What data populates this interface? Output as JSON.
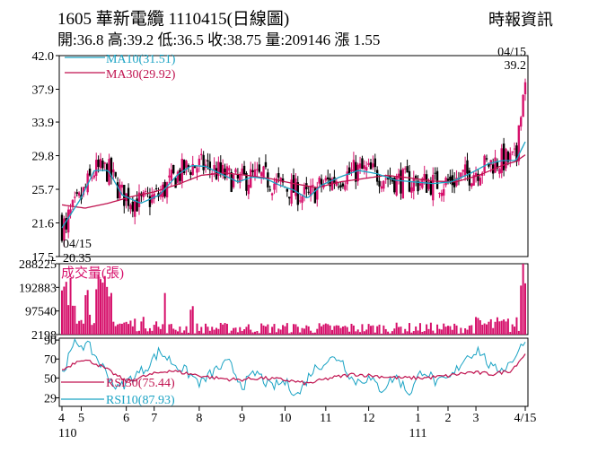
{
  "header": {
    "title": "1605  華新電纜 1110415(日線圖)",
    "source": "時報資訊",
    "ohlc": "開:36.8 高:39.2 低:36.5 收:38.75 量:209146 漲 1.55"
  },
  "colors": {
    "candle": "#d6106b",
    "ma10": "#1aa3c4",
    "ma30": "#c0124f",
    "rsi30": "#c0124f",
    "rsi10": "#1aa3c4",
    "volume": "#d6106b",
    "axis": "#000000"
  },
  "chart_data": [
    {
      "type": "candlestick",
      "title": "1605  華新電纜 1110415(日線圖)",
      "yticks": [
        17.5,
        21.6,
        25.7,
        29.8,
        33.9,
        37.9,
        42.0
      ],
      "ytick_labels": [
        "17.5",
        "21.6",
        "25.7",
        "29.8",
        "33.9",
        "37.9",
        "42.0"
      ],
      "ylim": [
        17.5,
        42.0
      ],
      "legend": [
        "MA10(31.51)",
        "MA30(29.92)"
      ],
      "annotations": [
        {
          "text": "04/15",
          "value": 20.35,
          "kind": "low"
        },
        {
          "text": "20.35",
          "value": 20.35,
          "kind": "low"
        },
        {
          "text": "04/15",
          "value": 39.2,
          "kind": "high"
        },
        {
          "text": "39.2",
          "value": 39.2,
          "kind": "high"
        }
      ],
      "ma_anchors": {
        "ma10": [
          [
            0,
            21.0
          ],
          [
            8,
            24.5
          ],
          [
            14,
            28.0
          ],
          [
            20,
            28.0
          ],
          [
            26,
            25.0
          ],
          [
            34,
            24.0
          ],
          [
            42,
            25.0
          ],
          [
            50,
            27.5
          ],
          [
            56,
            28.6
          ],
          [
            62,
            28.5
          ],
          [
            70,
            27.4
          ],
          [
            76,
            26.6
          ],
          [
            82,
            27.2
          ],
          [
            88,
            27.0
          ],
          [
            94,
            26.2
          ],
          [
            100,
            25.6
          ],
          [
            106,
            24.6
          ],
          [
            112,
            26.2
          ],
          [
            120,
            27.2
          ],
          [
            128,
            28.0
          ],
          [
            136,
            27.6
          ],
          [
            144,
            26.8
          ],
          [
            152,
            26.6
          ],
          [
            160,
            26.4
          ],
          [
            168,
            26.6
          ],
          [
            176,
            27.6
          ],
          [
            184,
            28.8
          ],
          [
            190,
            29.2
          ],
          [
            196,
            29.2
          ],
          [
            200,
            31.5
          ]
        ],
        "ma30": [
          [
            0,
            23.8
          ],
          [
            10,
            23.4
          ],
          [
            20,
            24.0
          ],
          [
            30,
            24.8
          ],
          [
            40,
            25.4
          ],
          [
            50,
            26.3
          ],
          [
            60,
            27.4
          ],
          [
            70,
            27.7
          ],
          [
            80,
            27.4
          ],
          [
            90,
            27.0
          ],
          [
            100,
            26.4
          ],
          [
            110,
            25.9
          ],
          [
            120,
            26.6
          ],
          [
            130,
            27.0
          ],
          [
            140,
            27.4
          ],
          [
            150,
            27.1
          ],
          [
            160,
            26.7
          ],
          [
            170,
            26.6
          ],
          [
            180,
            27.4
          ],
          [
            190,
            28.6
          ],
          [
            196,
            29.1
          ],
          [
            200,
            29.9
          ]
        ]
      }
    },
    {
      "type": "bar",
      "title": "成交量(張)",
      "yticks": [
        2198,
        97540,
        192883,
        288225
      ],
      "ytick_labels": [
        "2198",
        "97540",
        "192883",
        "288225"
      ],
      "ylim": [
        2198,
        288225
      ],
      "last_value": 209146
    },
    {
      "type": "line",
      "yticks": [
        29,
        50,
        70,
        90
      ],
      "ytick_labels": [
        "29",
        "50",
        "70",
        "90"
      ],
      "ylim": [
        20,
        92
      ],
      "legend": [
        "RSI30(75.44)",
        "RSI10(87.93)"
      ],
      "rsi_anchors": {
        "rsi30": [
          [
            0,
            58
          ],
          [
            8,
            70
          ],
          [
            14,
            66
          ],
          [
            20,
            58
          ],
          [
            28,
            46
          ],
          [
            36,
            52
          ],
          [
            46,
            58
          ],
          [
            56,
            54
          ],
          [
            66,
            50
          ],
          [
            76,
            48
          ],
          [
            86,
            50
          ],
          [
            96,
            48
          ],
          [
            106,
            44
          ],
          [
            116,
            50
          ],
          [
            126,
            54
          ],
          [
            136,
            52
          ],
          [
            146,
            50
          ],
          [
            156,
            50
          ],
          [
            166,
            52
          ],
          [
            176,
            56
          ],
          [
            186,
            54
          ],
          [
            194,
            58
          ],
          [
            200,
            75.44
          ]
        ],
        "rsi10": [
          [
            0,
            55
          ],
          [
            6,
            88
          ],
          [
            12,
            82
          ],
          [
            18,
            60
          ],
          [
            24,
            38
          ],
          [
            30,
            50
          ],
          [
            36,
            60
          ],
          [
            42,
            78
          ],
          [
            48,
            66
          ],
          [
            54,
            56
          ],
          [
            60,
            44
          ],
          [
            66,
            58
          ],
          [
            72,
            66
          ],
          [
            78,
            42
          ],
          [
            84,
            56
          ],
          [
            90,
            40
          ],
          [
            96,
            46
          ],
          [
            102,
            32
          ],
          [
            108,
            58
          ],
          [
            114,
            68
          ],
          [
            120,
            72
          ],
          [
            126,
            46
          ],
          [
            132,
            50
          ],
          [
            138,
            38
          ],
          [
            144,
            52
          ],
          [
            150,
            34
          ],
          [
            156,
            60
          ],
          [
            162,
            44
          ],
          [
            168,
            50
          ],
          [
            174,
            72
          ],
          [
            180,
            80
          ],
          [
            186,
            58
          ],
          [
            192,
            62
          ],
          [
            200,
            87.93
          ]
        ]
      }
    }
  ],
  "x_axis": {
    "months": [
      {
        "label": "4",
        "index": 0
      },
      {
        "label": "5",
        "index": 9
      },
      {
        "label": "6",
        "index": 30
      },
      {
        "label": "7",
        "index": 43
      },
      {
        "label": "8",
        "index": 64
      },
      {
        "label": "9",
        "index": 84
      },
      {
        "label": "10",
        "index": 104
      },
      {
        "label": "11",
        "index": 123
      },
      {
        "label": "12",
        "index": 143
      },
      {
        "label": "1",
        "index": 166
      },
      {
        "label": "2",
        "index": 180
      },
      {
        "label": "3",
        "index": 193
      },
      {
        "label": "4/15",
        "index": 216
      }
    ],
    "years": [
      {
        "label": "110",
        "index": 0
      },
      {
        "label": "111",
        "index": 166
      }
    ]
  }
}
